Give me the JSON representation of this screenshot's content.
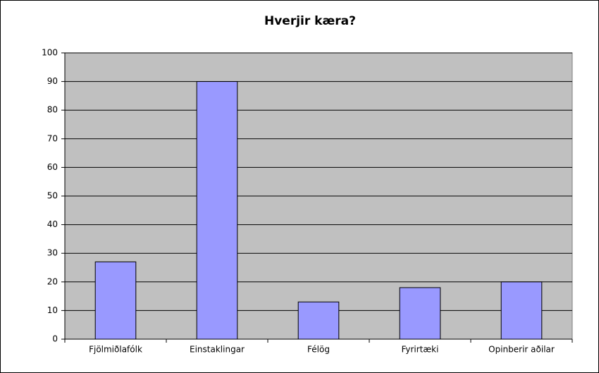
{
  "chart_data": {
    "type": "bar",
    "title": "Hverjir kæra?",
    "categories": [
      "Fjölmiðlafólk",
      "Einstaklingar",
      "Félög",
      "Fyrirtæki",
      "Opinberir aðilar"
    ],
    "values": [
      27,
      90,
      13,
      18,
      20
    ],
    "color": "#9999ff",
    "ylim": [
      0,
      100
    ],
    "yticks": [
      0,
      10,
      20,
      30,
      40,
      50,
      60,
      70,
      80,
      90,
      100
    ],
    "grid": true
  }
}
